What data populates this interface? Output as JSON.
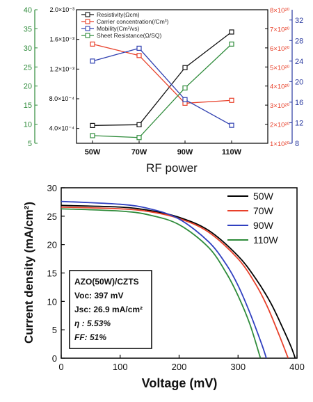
{
  "chart_data": [
    {
      "type": "line",
      "xlabel": "RF power",
      "categories": [
        "50W",
        "70W",
        "90W",
        "110W"
      ],
      "axes": {
        "y_resistivity": {
          "label_text": "",
          "range": [
            0.0002,
            0.002
          ],
          "ticks": [
            0.0004,
            0.0008,
            0.0012,
            0.0016,
            0.002
          ],
          "tick_labels": [
            "4.0×10⁻⁴",
            "8.0×10⁻⁴",
            "1.2×10⁻³",
            "1.6×10⁻³",
            "2.0×10⁻³"
          ],
          "color": "#000000"
        },
        "y_sheet": {
          "range": [
            5,
            40
          ],
          "ticks": [
            5,
            10,
            15,
            20,
            25,
            30,
            35,
            40
          ],
          "tick_labels": [
            "5",
            "10",
            "15",
            "20",
            "25",
            "30",
            "35",
            "40"
          ],
          "color": "#2e8b3a"
        },
        "y_carrier": {
          "range": [
            1e+20,
            8e+20
          ],
          "ticks": [
            1e+20,
            2e+20,
            3e+20,
            4e+20,
            5e+20,
            6e+20,
            7e+20,
            8e+20
          ],
          "tick_labels": [
            "1×10²⁰",
            "2×10²⁰",
            "3×10²⁰",
            "4×10²⁰",
            "5×10²⁰",
            "6×10²⁰",
            "7×10²⁰",
            "8×10²⁰"
          ],
          "color": "#e8402a"
        },
        "y_mobility": {
          "range": [
            8,
            34
          ],
          "ticks": [
            8,
            12,
            16,
            20,
            24,
            28,
            32
          ],
          "tick_labels": [
            "8",
            "12",
            "16",
            "20",
            "24",
            "28",
            "32"
          ],
          "color": "#2a3aa0"
        }
      },
      "series": [
        {
          "name": "Resistivity(Ωcm)",
          "axis": "y_resistivity",
          "color": "#111111",
          "values": [
            0.00044,
            0.00045,
            0.00122,
            0.0017
          ]
        },
        {
          "name": "Carrier concentration(/Cm³)",
          "axis": "y_carrier",
          "color": "#e8402a",
          "values": [
            6.2e+20,
            5.6e+20,
            3.1e+20,
            3.25e+20
          ]
        },
        {
          "name": "Mobility(Cm²/vs)",
          "axis": "y_mobility",
          "color": "#3040b0",
          "values": [
            24.0,
            26.5,
            16.5,
            11.5
          ]
        },
        {
          "name": "Sheet Resistance(Ω/SQ)",
          "axis": "y_sheet",
          "color": "#2e8b3a",
          "values": [
            7.0,
            6.5,
            19.5,
            31.0
          ]
        }
      ],
      "legend": "top-left"
    },
    {
      "type": "line",
      "xlabel": "Voltage (mV)",
      "ylabel": "Current density (mA/cm²)",
      "xlim": [
        0,
        400
      ],
      "ylim": [
        0,
        30
      ],
      "xticks": [
        0,
        100,
        200,
        300,
        400
      ],
      "yticks": [
        0,
        5,
        10,
        15,
        20,
        25,
        30
      ],
      "legend": "top-right",
      "series": [
        {
          "name": "50W",
          "color": "#000000",
          "x": [
            0,
            100,
            150,
            200,
            250,
            300,
            330,
            355,
            375,
            390,
            397
          ],
          "y": [
            26.9,
            26.6,
            26.0,
            24.8,
            22.5,
            18.0,
            14.0,
            9.8,
            5.5,
            2.0,
            0
          ]
        },
        {
          "name": "70W",
          "color": "#e8402a",
          "x": [
            0,
            100,
            150,
            200,
            250,
            300,
            330,
            350,
            370,
            385
          ],
          "y": [
            26.6,
            26.3,
            25.8,
            24.6,
            22.2,
            17.5,
            13.0,
            9.0,
            4.0,
            0
          ]
        },
        {
          "name": "90W",
          "color": "#3040c0",
          "x": [
            0,
            100,
            150,
            200,
            250,
            280,
            300,
            320,
            340,
            348
          ],
          "y": [
            27.6,
            27.1,
            26.3,
            24.5,
            20.5,
            16.5,
            12.8,
            8.0,
            2.5,
            0
          ]
        },
        {
          "name": "110W",
          "color": "#2e8b3a",
          "x": [
            0,
            100,
            150,
            200,
            250,
            280,
            300,
            320,
            338
          ],
          "y": [
            26.3,
            25.9,
            25.2,
            23.5,
            19.5,
            15.0,
            11.0,
            6.0,
            0
          ]
        }
      ],
      "annotation": {
        "lines": [
          "AZO(50W)/CZTS",
          "Voc: 397 mV",
          "Jsc: 26.9 mA/cm²",
          "η : 5.53%",
          "FF: 51%"
        ]
      }
    }
  ]
}
